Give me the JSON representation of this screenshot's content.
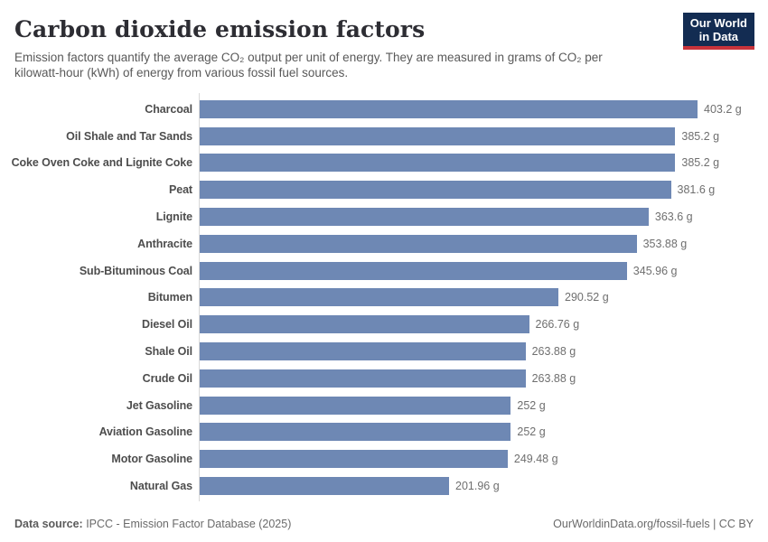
{
  "header": {
    "title": "Carbon dioxide emission factors",
    "subtitle_lines": [
      "Emission factors quantify the average CO₂ output per unit of energy. They are measured in grams of CO₂ per",
      "kilowatt-hour (kWh) of energy from various fossil fuel sources."
    ],
    "logo": {
      "line1": "Our World",
      "line2": "in Data",
      "bg_color": "#132c52",
      "accent_color": "#c8333b"
    }
  },
  "chart_data": {
    "type": "bar",
    "orientation": "horizontal",
    "title": "Carbon dioxide emission factors",
    "unit": "grams of CO₂ per kWh",
    "categories": [
      "Charcoal",
      "Oil Shale and Tar Sands",
      "Coke Oven Coke and Lignite Coke",
      "Peat",
      "Lignite",
      "Anthracite",
      "Sub-Bituminous Coal",
      "Bitumen",
      "Diesel Oil",
      "Shale Oil",
      "Crude Oil",
      "Jet Gasoline",
      "Aviation Gasoline",
      "Motor Gasoline",
      "Natural Gas"
    ],
    "values": [
      403.2,
      385.2,
      385.2,
      381.6,
      363.6,
      353.88,
      345.96,
      290.52,
      266.76,
      263.88,
      263.88,
      252,
      252,
      249.48,
      201.96
    ],
    "value_labels": [
      "403.2 g",
      "385.2 g",
      "385.2 g",
      "381.6 g",
      "363.6 g",
      "353.88 g",
      "345.96 g",
      "290.52 g",
      "266.76 g",
      "263.88 g",
      "263.88 g",
      "252 g",
      "252 g",
      "249.48 g",
      "201.96 g"
    ],
    "xlim": [
      0,
      403.2
    ],
    "grid": false,
    "legend": "none",
    "bar_color": "#6e88b4",
    "axis_color": "#d9d9d9"
  },
  "footer": {
    "source_label": "Data source:",
    "source_text": " IPCC - Emission Factor Database (2025)",
    "right_text": "OurWorldinData.org/fossil-fuels | CC BY"
  }
}
